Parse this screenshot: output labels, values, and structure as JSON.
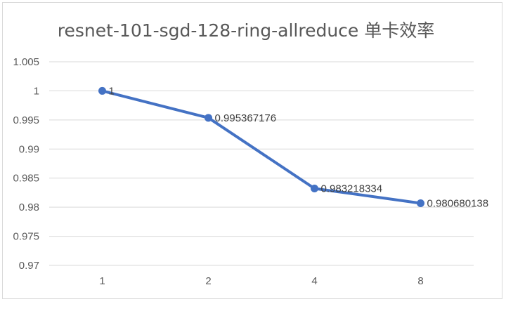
{
  "chart_data": {
    "type": "line",
    "title": "resnet-101-sgd-128-ring-allreduce 单卡效率",
    "categories": [
      "1",
      "2",
      "4",
      "8"
    ],
    "series": [
      {
        "values": [
          1,
          0.995367176,
          0.983218334,
          0.980680138
        ],
        "data_labels": [
          "1",
          "0.995367176",
          "0.983218334",
          "0.980680138"
        ]
      }
    ],
    "y_ticks": [
      "0.97",
      "0.975",
      "0.98",
      "0.985",
      "0.99",
      "0.995",
      "1",
      "1.005"
    ],
    "ylim": [
      0.97,
      1.005
    ],
    "xlabel": "",
    "ylabel": "",
    "grid": true,
    "legend": "none",
    "colors": {
      "line": "#4472C4",
      "grid": "#D9D9D9",
      "border": "#D9D9D9",
      "text": "#595959"
    }
  }
}
